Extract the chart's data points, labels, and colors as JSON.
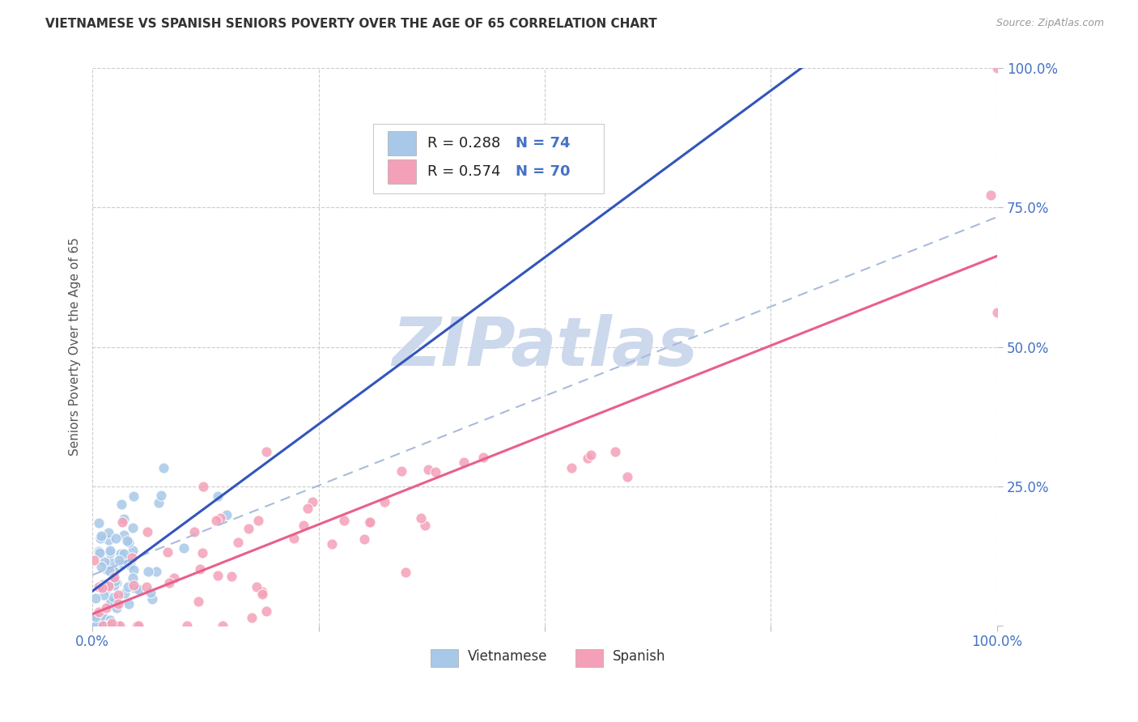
{
  "title": "VIETNAMESE VS SPANISH SENIORS POVERTY OVER THE AGE OF 65 CORRELATION CHART",
  "source": "Source: ZipAtlas.com",
  "ylabel": "Seniors Poverty Over the Age of 65",
  "background_color": "#ffffff",
  "grid_color": "#cccccc",
  "title_color": "#333333",
  "source_color": "#999999",
  "blue_color": "#a8c8e8",
  "pink_color": "#f4a0b8",
  "blue_line_color": "#3355bb",
  "pink_line_color": "#e8608a",
  "dashed_line_color": "#aabbdd",
  "axis_label_color": "#4472c4",
  "R_vietnamese": 0.288,
  "N_vietnamese": 74,
  "R_spanish": 0.574,
  "N_spanish": 70,
  "watermark_color": "#ccd8ec",
  "xlim": [
    0.0,
    1.0
  ],
  "ylim": [
    0.0,
    1.0
  ]
}
